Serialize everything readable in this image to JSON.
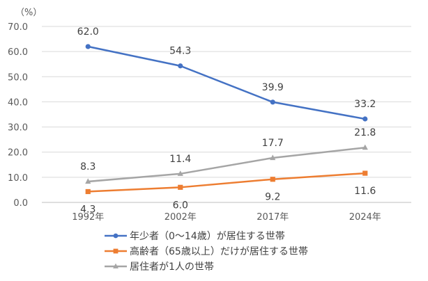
{
  "chart_data": {
    "type": "line",
    "title": "",
    "ylabel": "（%）",
    "xlabel": "",
    "categories": [
      "1992年",
      "2002年",
      "2017年",
      "2024年"
    ],
    "ylim": [
      0,
      70
    ],
    "yticks": [
      "0.0",
      "10.0",
      "20.0",
      "30.0",
      "40.0",
      "50.0",
      "60.0",
      "70.0"
    ],
    "grid": true,
    "legend_position": "bottom",
    "series": [
      {
        "name": "年少者（0～14歳）が居住する世帯",
        "color": "#4472c4",
        "marker": "circle",
        "values": [
          62.0,
          54.3,
          39.9,
          33.2
        ],
        "labels": [
          "62.0",
          "54.3",
          "39.9",
          "33.2"
        ],
        "label_position": "above"
      },
      {
        "name": "高齢者（65歳以上）だけが居住する世帯",
        "color": "#ed7d31",
        "marker": "square",
        "values": [
          4.3,
          6.0,
          9.2,
          11.6
        ],
        "labels": [
          "4.3",
          "6.0",
          "9.2",
          "11.6"
        ],
        "label_position": "below"
      },
      {
        "name": "居住者が1人の世帯",
        "color": "#a5a5a5",
        "marker": "triangle",
        "values": [
          8.3,
          11.4,
          17.7,
          21.8
        ],
        "labels": [
          "8.3",
          "11.4",
          "17.7",
          "21.8"
        ],
        "label_position": "above"
      }
    ]
  }
}
